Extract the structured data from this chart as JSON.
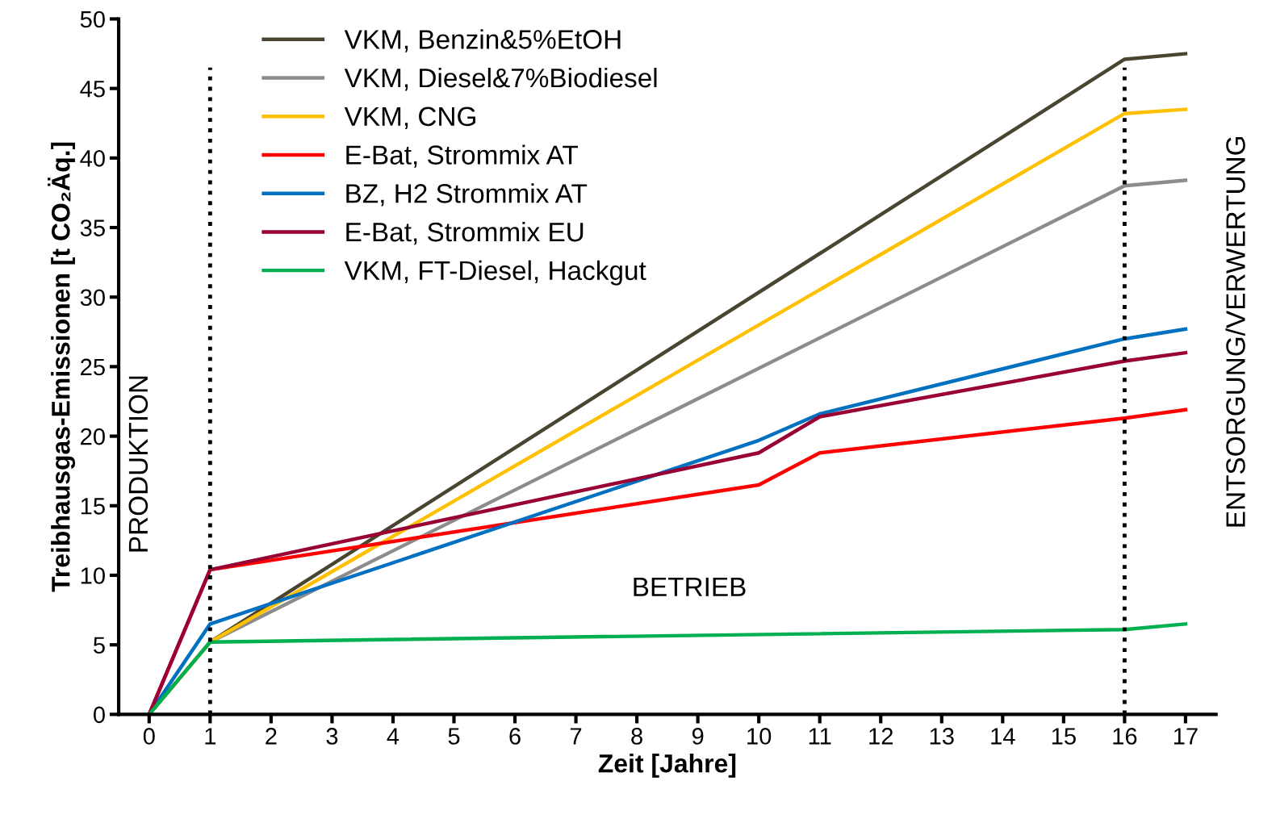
{
  "chart_data": {
    "type": "line",
    "xlabel": "Zeit [Jahre]",
    "ylabel": "Treibhausgas-Emissionen [t CO₂Äq.]",
    "xlim": [
      -0.5,
      17.5
    ],
    "xticks": [
      0,
      1,
      2,
      3,
      4,
      5,
      6,
      7,
      8,
      9,
      10,
      11,
      12,
      13,
      14,
      15,
      16,
      17
    ],
    "ylim": [
      0,
      50
    ],
    "yticks": [
      0,
      5,
      10,
      15,
      20,
      25,
      30,
      35,
      40,
      45,
      50
    ],
    "grid": false,
    "legend": "top left",
    "marker": "none",
    "line_style": "solid",
    "series": [
      {
        "name": "VKM, Benzin&5%EtOH",
        "color": "#4a4530",
        "x": [
          0,
          1,
          16,
          17
        ],
        "values": [
          0,
          5.2,
          47.1,
          47.5
        ]
      },
      {
        "name": "VKM, Diesel&7%Biodiesel",
        "color": "#8c8c8c",
        "x": [
          0,
          1,
          16,
          17
        ],
        "values": [
          0,
          5.2,
          38.0,
          38.4
        ]
      },
      {
        "name": "VKM, CNG",
        "color": "#ffc000",
        "x": [
          0,
          1,
          16,
          17
        ],
        "values": [
          0,
          5.2,
          43.2,
          43.5
        ]
      },
      {
        "name": "E-Bat, Strommix AT",
        "color": "#ff0000",
        "x": [
          0,
          1,
          10,
          11,
          16,
          17
        ],
        "values": [
          0,
          10.4,
          16.5,
          18.8,
          21.3,
          21.9
        ]
      },
      {
        "name": "BZ, H2 Strommix AT",
        "color": "#0070c0",
        "x": [
          0,
          1,
          10,
          11,
          16,
          17
        ],
        "values": [
          0,
          6.5,
          19.7,
          21.6,
          27.0,
          27.7
        ]
      },
      {
        "name": "E-Bat, Strommix EU",
        "color": "#990033",
        "x": [
          0,
          1,
          10,
          11,
          16,
          17
        ],
        "values": [
          0,
          10.4,
          18.8,
          21.4,
          25.4,
          26.0
        ]
      },
      {
        "name": "VKM, FT-Diesel, Hackgut",
        "color": "#00b050",
        "x": [
          0,
          1,
          16,
          17
        ],
        "values": [
          0,
          5.2,
          6.1,
          6.5
        ]
      }
    ],
    "ref_lines": [
      {
        "axis": "x",
        "value": 1,
        "color": "#000000",
        "line_style": "dotted"
      },
      {
        "axis": "x",
        "value": 16,
        "color": "#000000",
        "line_style": "dotted"
      }
    ],
    "annotations": [
      "PRODUKTION",
      "BETRIEB",
      "ENTSORGUNG/VERWERTUNG"
    ]
  }
}
